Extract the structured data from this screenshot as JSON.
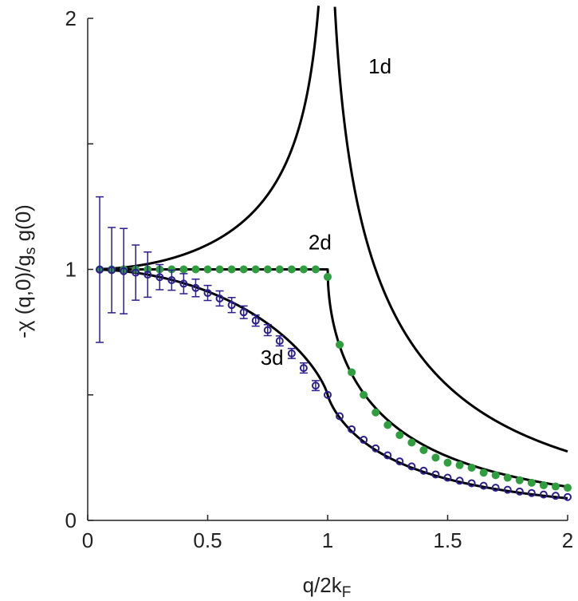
{
  "chart_data": {
    "type": "line",
    "xlabel": {
      "main": "q/2k",
      "sub": "F"
    },
    "ylabel": {
      "text": "-χ (q,0)/g",
      "sub": "s",
      "tail": " g(0)"
    },
    "xlim": [
      0,
      2
    ],
    "ylim": [
      0,
      2
    ],
    "x_ticks": [
      "0",
      "0.5",
      "1",
      "1.5",
      "2"
    ],
    "y_ticks": [
      "0",
      "1",
      "2"
    ],
    "grid": false,
    "colors": {
      "curve": "#000000",
      "two_d_points": "#2e9e3f",
      "three_d_points": "#2b1f8f"
    },
    "curve_labels": [
      {
        "text": "1d",
        "x": 1.17,
        "y": 1.78
      },
      {
        "text": "2d",
        "x": 0.92,
        "y": 1.08
      },
      {
        "text": "3d",
        "x": 0.72,
        "y": 0.62
      }
    ],
    "series": [
      {
        "key": "1d",
        "kind": "curve",
        "dim": 1
      },
      {
        "key": "2d",
        "kind": "curve",
        "dim": 2
      },
      {
        "key": "3d",
        "kind": "curve",
        "dim": 3
      },
      {
        "key": "2d_points",
        "kind": "points",
        "x": [
          0.05,
          0.1,
          0.15,
          0.2,
          0.25,
          0.3,
          0.35,
          0.4,
          0.45,
          0.5,
          0.55,
          0.6,
          0.65,
          0.7,
          0.75,
          0.8,
          0.85,
          0.9,
          0.95,
          1.0,
          1.05,
          1.1,
          1.15,
          1.2,
          1.25,
          1.3,
          1.35,
          1.4,
          1.45,
          1.5,
          1.55,
          1.6,
          1.65,
          1.7,
          1.75,
          1.8,
          1.85,
          1.9,
          1.95,
          2.0
        ],
        "y": [
          1.0,
          1.0,
          1.0,
          1.0,
          1.0,
          1.0,
          1.0,
          1.0,
          1.0,
          1.0,
          1.0,
          1.0,
          1.0,
          1.0,
          1.0,
          1.0,
          1.0,
          1.0,
          1.0,
          0.97,
          0.7,
          0.59,
          0.5,
          0.43,
          0.38,
          0.34,
          0.31,
          0.28,
          0.25,
          0.23,
          0.22,
          0.21,
          0.19,
          0.18,
          0.17,
          0.16,
          0.15,
          0.14,
          0.135,
          0.13
        ]
      },
      {
        "key": "3d_points",
        "kind": "points",
        "x": [
          0.05,
          0.1,
          0.15,
          0.2,
          0.25,
          0.3,
          0.35,
          0.4,
          0.45,
          0.5,
          0.55,
          0.6,
          0.65,
          0.7,
          0.75,
          0.8,
          0.85,
          0.9,
          0.95,
          1.0,
          1.05,
          1.1,
          1.15,
          1.2,
          1.25,
          1.3,
          1.35,
          1.4,
          1.45,
          1.5,
          1.55,
          1.6,
          1.65,
          1.7,
          1.75,
          1.8,
          1.85,
          1.9,
          1.95,
          2.0
        ],
        "y": [
          0.999,
          0.997,
          0.993,
          0.987,
          0.979,
          0.969,
          0.957,
          0.943,
          0.926,
          0.906,
          0.884,
          0.858,
          0.829,
          0.796,
          0.758,
          0.715,
          0.665,
          0.607,
          0.537,
          0.5,
          0.415,
          0.363,
          0.321,
          0.287,
          0.259,
          0.235,
          0.215,
          0.198,
          0.183,
          0.17,
          0.158,
          0.148,
          0.138,
          0.13,
          0.122,
          0.115,
          0.109,
          0.103,
          0.098,
          0.093
        ],
        "err": [
          0.29,
          0.17,
          0.17,
          0.11,
          0.09,
          0.05,
          0.04,
          0.04,
          0.035,
          0.03,
          0.03,
          0.03,
          0.025,
          0.022,
          0.022,
          0.02,
          0.02,
          0.02,
          0.02,
          0.012,
          0.01,
          0.01,
          0.008,
          0.008,
          0.006,
          0.006,
          0.005,
          0.005,
          0.005,
          0.004,
          0.004,
          0.004,
          0.004,
          0.003,
          0.003,
          0.003,
          0.003,
          0.003,
          0.003,
          0.003
        ],
        "err_upto_x": 1.0
      }
    ]
  }
}
